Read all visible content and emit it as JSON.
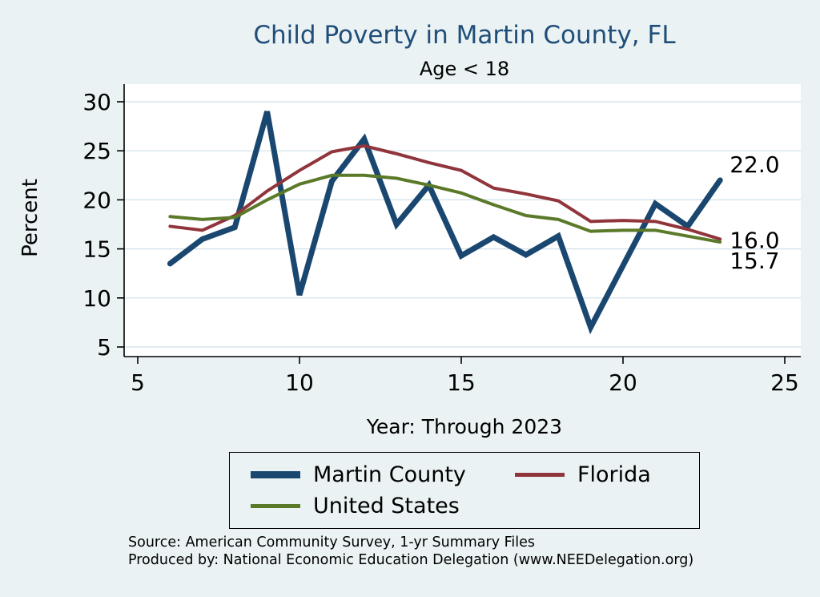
{
  "title": "Child Poverty in Martin County, FL",
  "subtitle": "Age < 18",
  "ylabel": "Percent",
  "xlabel": "Year: Through 2023",
  "source_line1": "Source: American Community Survey, 1-yr Summary Files",
  "source_line2": "Produced by: National Economic Education Delegation (www.NEEDelegation.org)",
  "colors": {
    "background": "#eaf2f3",
    "plot_background": "#ffffff",
    "gridline": "#cfe0e8",
    "title": "#1f4e79",
    "martin_county": "#1a476f",
    "florida": "#90353b",
    "united_states": "#5a7a29"
  },
  "chart_data": {
    "type": "line",
    "title": "Child Poverty in Martin County, FL",
    "subtitle": "Age < 18",
    "xlabel": "Year: Through 2023",
    "ylabel": "Percent",
    "xlim": [
      5,
      25
    ],
    "ylim": [
      5,
      30
    ],
    "x_ticks": [
      5,
      10,
      15,
      20,
      25
    ],
    "y_ticks": [
      5,
      10,
      15,
      20,
      25,
      30
    ],
    "grid": "horizontal",
    "legend_position": "bottom",
    "x": [
      6,
      7,
      8,
      9,
      10,
      11,
      12,
      13,
      14,
      15,
      16,
      17,
      18,
      19,
      20,
      21,
      22,
      23
    ],
    "series": [
      {
        "name": "Martin County",
        "color": "#1a476f",
        "line_width": 7,
        "end_label": "22.0",
        "values": [
          13.5,
          16.0,
          17.2,
          29.0,
          10.3,
          21.9,
          26.2,
          17.5,
          21.5,
          14.3,
          16.2,
          14.4,
          16.3,
          7.0,
          13.3,
          19.6,
          17.3,
          22.0
        ]
      },
      {
        "name": "Florida",
        "color": "#90353b",
        "line_width": 4,
        "end_label": "16.0",
        "values": [
          17.3,
          16.9,
          18.4,
          20.9,
          23.0,
          24.9,
          25.5,
          24.7,
          23.8,
          23.0,
          21.2,
          20.6,
          19.9,
          17.8,
          17.9,
          17.8,
          17.0,
          16.0
        ]
      },
      {
        "name": "United States",
        "color": "#5a7a29",
        "line_width": 4,
        "end_label": "15.7",
        "values": [
          18.3,
          18.0,
          18.2,
          20.0,
          21.6,
          22.5,
          22.5,
          22.2,
          21.5,
          20.7,
          19.5,
          18.4,
          18.0,
          16.8,
          16.9,
          16.9,
          16.3,
          15.7
        ]
      }
    ]
  }
}
